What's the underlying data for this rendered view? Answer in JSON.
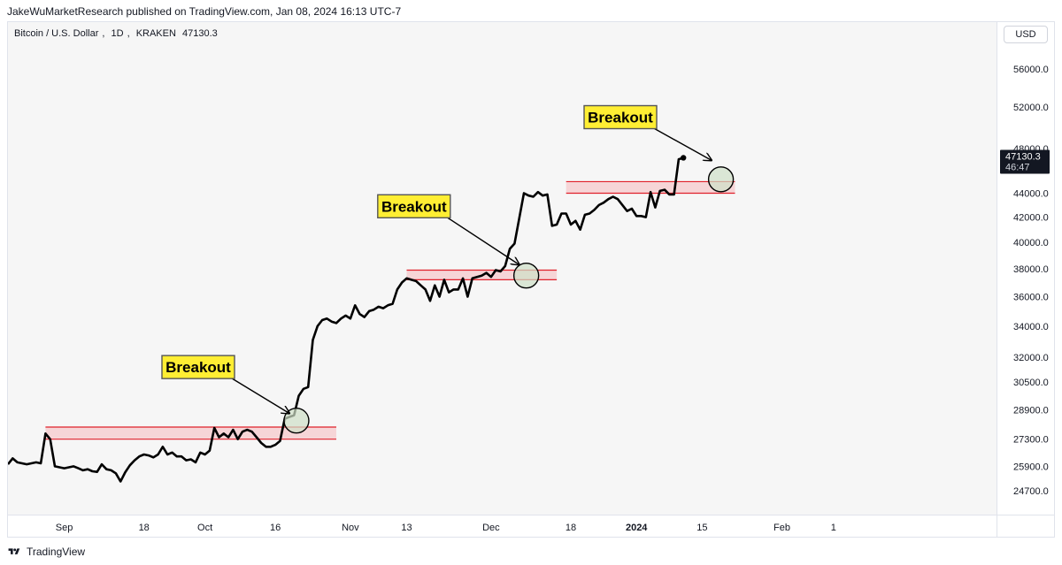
{
  "header": {
    "publisher_line": "JakeWuMarketResearch published on TradingView.com, Jan 08, 2024 16:13 UTC-7"
  },
  "symbol": {
    "name": "Bitcoin / U.S. Dollar",
    "interval": "1D",
    "exchange": "KRAKEN",
    "last_price": "47130.3"
  },
  "currency_button": "USD",
  "footer": {
    "brand": "TradingView"
  },
  "colors": {
    "plot_bg": "#f6f6f6",
    "line": "#000000",
    "zone_line": "#e0202a",
    "zone_fill": "#f6c9cc",
    "callout_bg": "#ffee33",
    "circle_fill": "#cfe0c8",
    "price_tag_bg": "#131722"
  },
  "chart_data": {
    "type": "line",
    "title": "Bitcoin / U.S. Dollar, 1D, KRAKEN",
    "y_scale": "log",
    "ylim": [
      24000,
      59000
    ],
    "y_ticks": [
      24700,
      25900,
      27300,
      28900,
      30500,
      32000,
      34000,
      36000,
      38000,
      40000,
      42000,
      44000,
      48000,
      52000,
      56000
    ],
    "y_tick_labels": [
      "24700.0",
      "25900.0",
      "27300.0",
      "28900.0",
      "30500.0",
      "32000.0",
      "34000.0",
      "36000.0",
      "38000.0",
      "40000.0",
      "42000.0",
      "44000.0",
      "48000.0",
      "52000.0",
      "56000.0"
    ],
    "x_start_date": "2023-08-20",
    "x_ticks": [
      {
        "day": 12,
        "label": "Sep",
        "bold": false
      },
      {
        "day": 29,
        "label": "18",
        "bold": false
      },
      {
        "day": 42,
        "label": "Oct",
        "bold": false
      },
      {
        "day": 57,
        "label": "16",
        "bold": false
      },
      {
        "day": 73,
        "label": "Nov",
        "bold": false
      },
      {
        "day": 85,
        "label": "13",
        "bold": false
      },
      {
        "day": 103,
        "label": "Dec",
        "bold": false
      },
      {
        "day": 120,
        "label": "18",
        "bold": false
      },
      {
        "day": 134,
        "label": "2024",
        "bold": true
      },
      {
        "day": 148,
        "label": "15",
        "bold": false
      },
      {
        "day": 165,
        "label": "Feb",
        "bold": false
      },
      {
        "day": 176,
        "label": "1",
        "bold": false
      }
    ],
    "series": [
      {
        "name": "BTCUSD close",
        "values": [
          26000,
          26300,
          26100,
          26050,
          26000,
          26050,
          26100,
          26050,
          27600,
          27300,
          25900,
          25850,
          25800,
          25850,
          25900,
          25800,
          25700,
          25750,
          25650,
          25620,
          26000,
          25750,
          25700,
          25550,
          25150,
          25600,
          25950,
          26200,
          26400,
          26500,
          26450,
          26350,
          26500,
          26900,
          26500,
          26600,
          26400,
          26400,
          26200,
          26250,
          26100,
          26600,
          26500,
          26700,
          27900,
          27400,
          27600,
          27400,
          27800,
          27300,
          27700,
          27800,
          27700,
          27400,
          27100,
          26900,
          26900,
          27000,
          27200,
          28400,
          28500,
          28600,
          29700,
          30100,
          30200,
          33100,
          34000,
          34400,
          34500,
          34300,
          34200,
          34500,
          34700,
          34500,
          35400,
          34800,
          34600,
          35000,
          35100,
          35300,
          35200,
          35400,
          35500,
          36500,
          37000,
          37300,
          37200,
          37100,
          36800,
          36500,
          35700,
          36800,
          36000,
          37200,
          36300,
          36500,
          36500,
          37300,
          36000,
          37300,
          37400,
          37500,
          37700,
          37400,
          37900,
          37800,
          38200,
          39500,
          39900,
          41900,
          44000,
          43800,
          43700,
          44100,
          43800,
          43900,
          41300,
          41400,
          42300,
          42300,
          41400,
          41700,
          41000,
          42200,
          42300,
          42600,
          43000,
          43200,
          43500,
          43700,
          43500,
          43000,
          42500,
          42700,
          42100,
          42100,
          42000,
          44100,
          42800,
          44200,
          44300,
          43900,
          43900,
          47000,
          47130.3
        ]
      }
    ],
    "zones": [
      {
        "day_start": 8,
        "day_end": 70,
        "low": 27300,
        "high": 27950
      },
      {
        "day_start": 85,
        "day_end": 117,
        "low": 37200,
        "high": 37900
      },
      {
        "day_start": 119,
        "day_end": 155,
        "low": 44000,
        "high": 45000
      }
    ],
    "annotations": [
      {
        "text": "Breakout",
        "box_day": 40,
        "box_price": 31400,
        "target_day": 60,
        "target_price": 28700,
        "circle_day": 61.5,
        "circle_price": 28300
      },
      {
        "text": "Breakout",
        "box_day": 86,
        "box_price": 42900,
        "target_day": 109,
        "target_price": 38300,
        "circle_day": 110.5,
        "circle_price": 37500
      },
      {
        "text": "Breakout",
        "box_day": 130,
        "box_price": 51000,
        "target_day": 150,
        "target_price": 46900,
        "circle_day": 152,
        "circle_price": 45200
      }
    ],
    "last_price_tag": {
      "price": "47130.3",
      "countdown": "46:47"
    }
  }
}
